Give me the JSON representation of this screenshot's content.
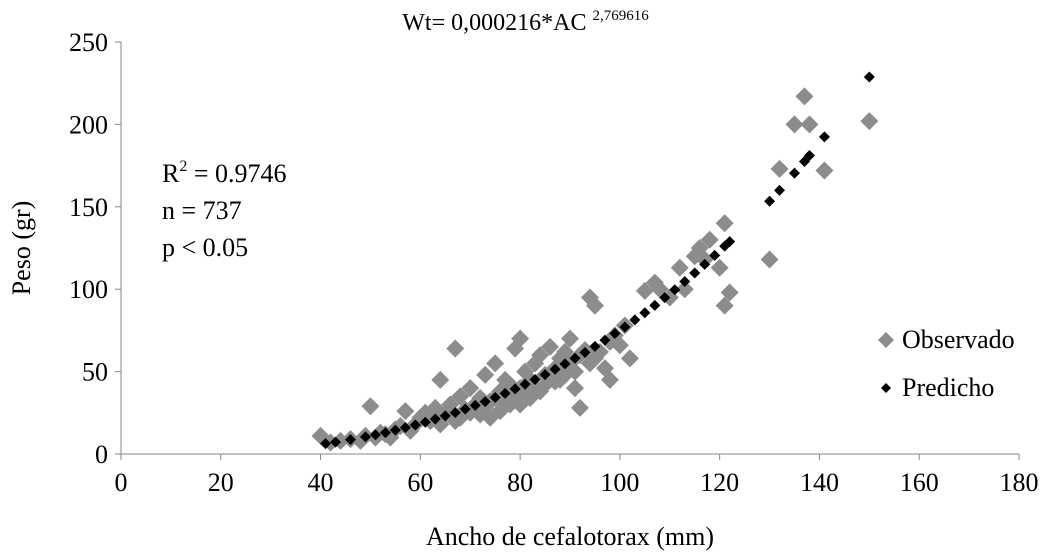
{
  "chart_data": {
    "type": "scatter",
    "title": {
      "prefix": "Wt= 0,000216*AC",
      "exponent": "2,769616"
    },
    "xlabel": "Ancho de cefalotorax (mm)",
    "ylabel": "Peso (gr)",
    "xlim": [
      0,
      180
    ],
    "ylim": [
      0,
      250
    ],
    "x_ticks": [
      "0",
      "20",
      "40",
      "60",
      "80",
      "100",
      "120",
      "140",
      "160",
      "180"
    ],
    "y_ticks": [
      "0",
      "50",
      "100",
      "150",
      "200",
      "250"
    ],
    "grid": false,
    "legend_position": "right",
    "annotations": {
      "r2_prefix": "R",
      "r2_sup": "2",
      "r2_value": " = 0.9746",
      "n": "n = 737",
      "p": "p < 0.05"
    },
    "series": [
      {
        "name": "Observado",
        "marker": "diamond",
        "color": "#8c8c8c",
        "points": [
          [
            40,
            11
          ],
          [
            42,
            7
          ],
          [
            44,
            8
          ],
          [
            46,
            9
          ],
          [
            48,
            8
          ],
          [
            49,
            11
          ],
          [
            50,
            29
          ],
          [
            51,
            10
          ],
          [
            52,
            13
          ],
          [
            53,
            12
          ],
          [
            54,
            10
          ],
          [
            55,
            15
          ],
          [
            56,
            17
          ],
          [
            57,
            26
          ],
          [
            58,
            14
          ],
          [
            59,
            18
          ],
          [
            60,
            22
          ],
          [
            61,
            25
          ],
          [
            62,
            20
          ],
          [
            63,
            28
          ],
          [
            64,
            45
          ],
          [
            64,
            18
          ],
          [
            65,
            24
          ],
          [
            66,
            30
          ],
          [
            67,
            64
          ],
          [
            67,
            20
          ],
          [
            68,
            35
          ],
          [
            68,
            22
          ],
          [
            69,
            27
          ],
          [
            70,
            40
          ],
          [
            70,
            25
          ],
          [
            71,
            30
          ],
          [
            72,
            34
          ],
          [
            72,
            24
          ],
          [
            73,
            48
          ],
          [
            73,
            28
          ],
          [
            74,
            32
          ],
          [
            74,
            22
          ],
          [
            75,
            55
          ],
          [
            75,
            34
          ],
          [
            76,
            38
          ],
          [
            76,
            26
          ],
          [
            77,
            45
          ],
          [
            77,
            31
          ],
          [
            78,
            42
          ],
          [
            78,
            30
          ],
          [
            79,
            64
          ],
          [
            79,
            36
          ],
          [
            80,
            70
          ],
          [
            80,
            40
          ],
          [
            80,
            30
          ],
          [
            81,
            50
          ],
          [
            81,
            36
          ],
          [
            82,
            45
          ],
          [
            82,
            34
          ],
          [
            83,
            55
          ],
          [
            83,
            40
          ],
          [
            84,
            60
          ],
          [
            84,
            38
          ],
          [
            85,
            48
          ],
          [
            85,
            42
          ],
          [
            86,
            65
          ],
          [
            86,
            46
          ],
          [
            87,
            52
          ],
          [
            87,
            44
          ],
          [
            88,
            58
          ],
          [
            88,
            45
          ],
          [
            89,
            62
          ],
          [
            89,
            48
          ],
          [
            90,
            55
          ],
          [
            90,
            70
          ],
          [
            91,
            50
          ],
          [
            91,
            40
          ],
          [
            92,
            60
          ],
          [
            92,
            28
          ],
          [
            93,
            63
          ],
          [
            94,
            95
          ],
          [
            94,
            55
          ],
          [
            95,
            58
          ],
          [
            95,
            90
          ],
          [
            96,
            62
          ],
          [
            97,
            52
          ],
          [
            98,
            45
          ],
          [
            98,
            68
          ],
          [
            99,
            72
          ],
          [
            100,
            66
          ],
          [
            101,
            78
          ],
          [
            102,
            58
          ],
          [
            105,
            99
          ],
          [
            107,
            104
          ],
          [
            108,
            100
          ],
          [
            110,
            95
          ],
          [
            112,
            113
          ],
          [
            113,
            100
          ],
          [
            115,
            120
          ],
          [
            116,
            125
          ],
          [
            117,
            118
          ],
          [
            118,
            130
          ],
          [
            120,
            113
          ],
          [
            121,
            90
          ],
          [
            121,
            140
          ],
          [
            122,
            98
          ],
          [
            130,
            118
          ],
          [
            132,
            173
          ],
          [
            135,
            200
          ],
          [
            137,
            217
          ],
          [
            138,
            200
          ],
          [
            141,
            172
          ],
          [
            150,
            202
          ]
        ]
      },
      {
        "name": "Predicho",
        "marker": "diamond",
        "color": "#000000",
        "points": [
          [
            41,
            6.3
          ],
          [
            43,
            7.2
          ],
          [
            46,
            8.7
          ],
          [
            49,
            10.4
          ],
          [
            51,
            11.7
          ],
          [
            53,
            13.0
          ],
          [
            55,
            14.5
          ],
          [
            57,
            16.0
          ],
          [
            59,
            17.6
          ],
          [
            61,
            19.3
          ],
          [
            63,
            21.2
          ],
          [
            65,
            23.1
          ],
          [
            67,
            25.1
          ],
          [
            69,
            27.2
          ],
          [
            71,
            29.5
          ],
          [
            73,
            31.8
          ],
          [
            75,
            34.3
          ],
          [
            77,
            36.8
          ],
          [
            79,
            39.5
          ],
          [
            81,
            42.3
          ],
          [
            83,
            45.2
          ],
          [
            85,
            48.2
          ],
          [
            87,
            51.4
          ],
          [
            89,
            54.7
          ],
          [
            91,
            58.1
          ],
          [
            93,
            61.6
          ],
          [
            95,
            65.3
          ],
          [
            97,
            69.1
          ],
          [
            99,
            73.1
          ],
          [
            101,
            77.1
          ],
          [
            103,
            81.4
          ],
          [
            105,
            85.7
          ],
          [
            107,
            90.2
          ],
          [
            109,
            94.9
          ],
          [
            111,
            99.7
          ],
          [
            113,
            104.7
          ],
          [
            115,
            109.8
          ],
          [
            117,
            115.1
          ],
          [
            119,
            120.5
          ],
          [
            121,
            126.1
          ],
          [
            122,
            128.9
          ],
          [
            130,
            153.4
          ],
          [
            132,
            160.0
          ],
          [
            135,
            170.4
          ],
          [
            137,
            177.5
          ],
          [
            138,
            181.1
          ],
          [
            141,
            192.4
          ],
          [
            150,
            228.8
          ]
        ]
      }
    ]
  }
}
